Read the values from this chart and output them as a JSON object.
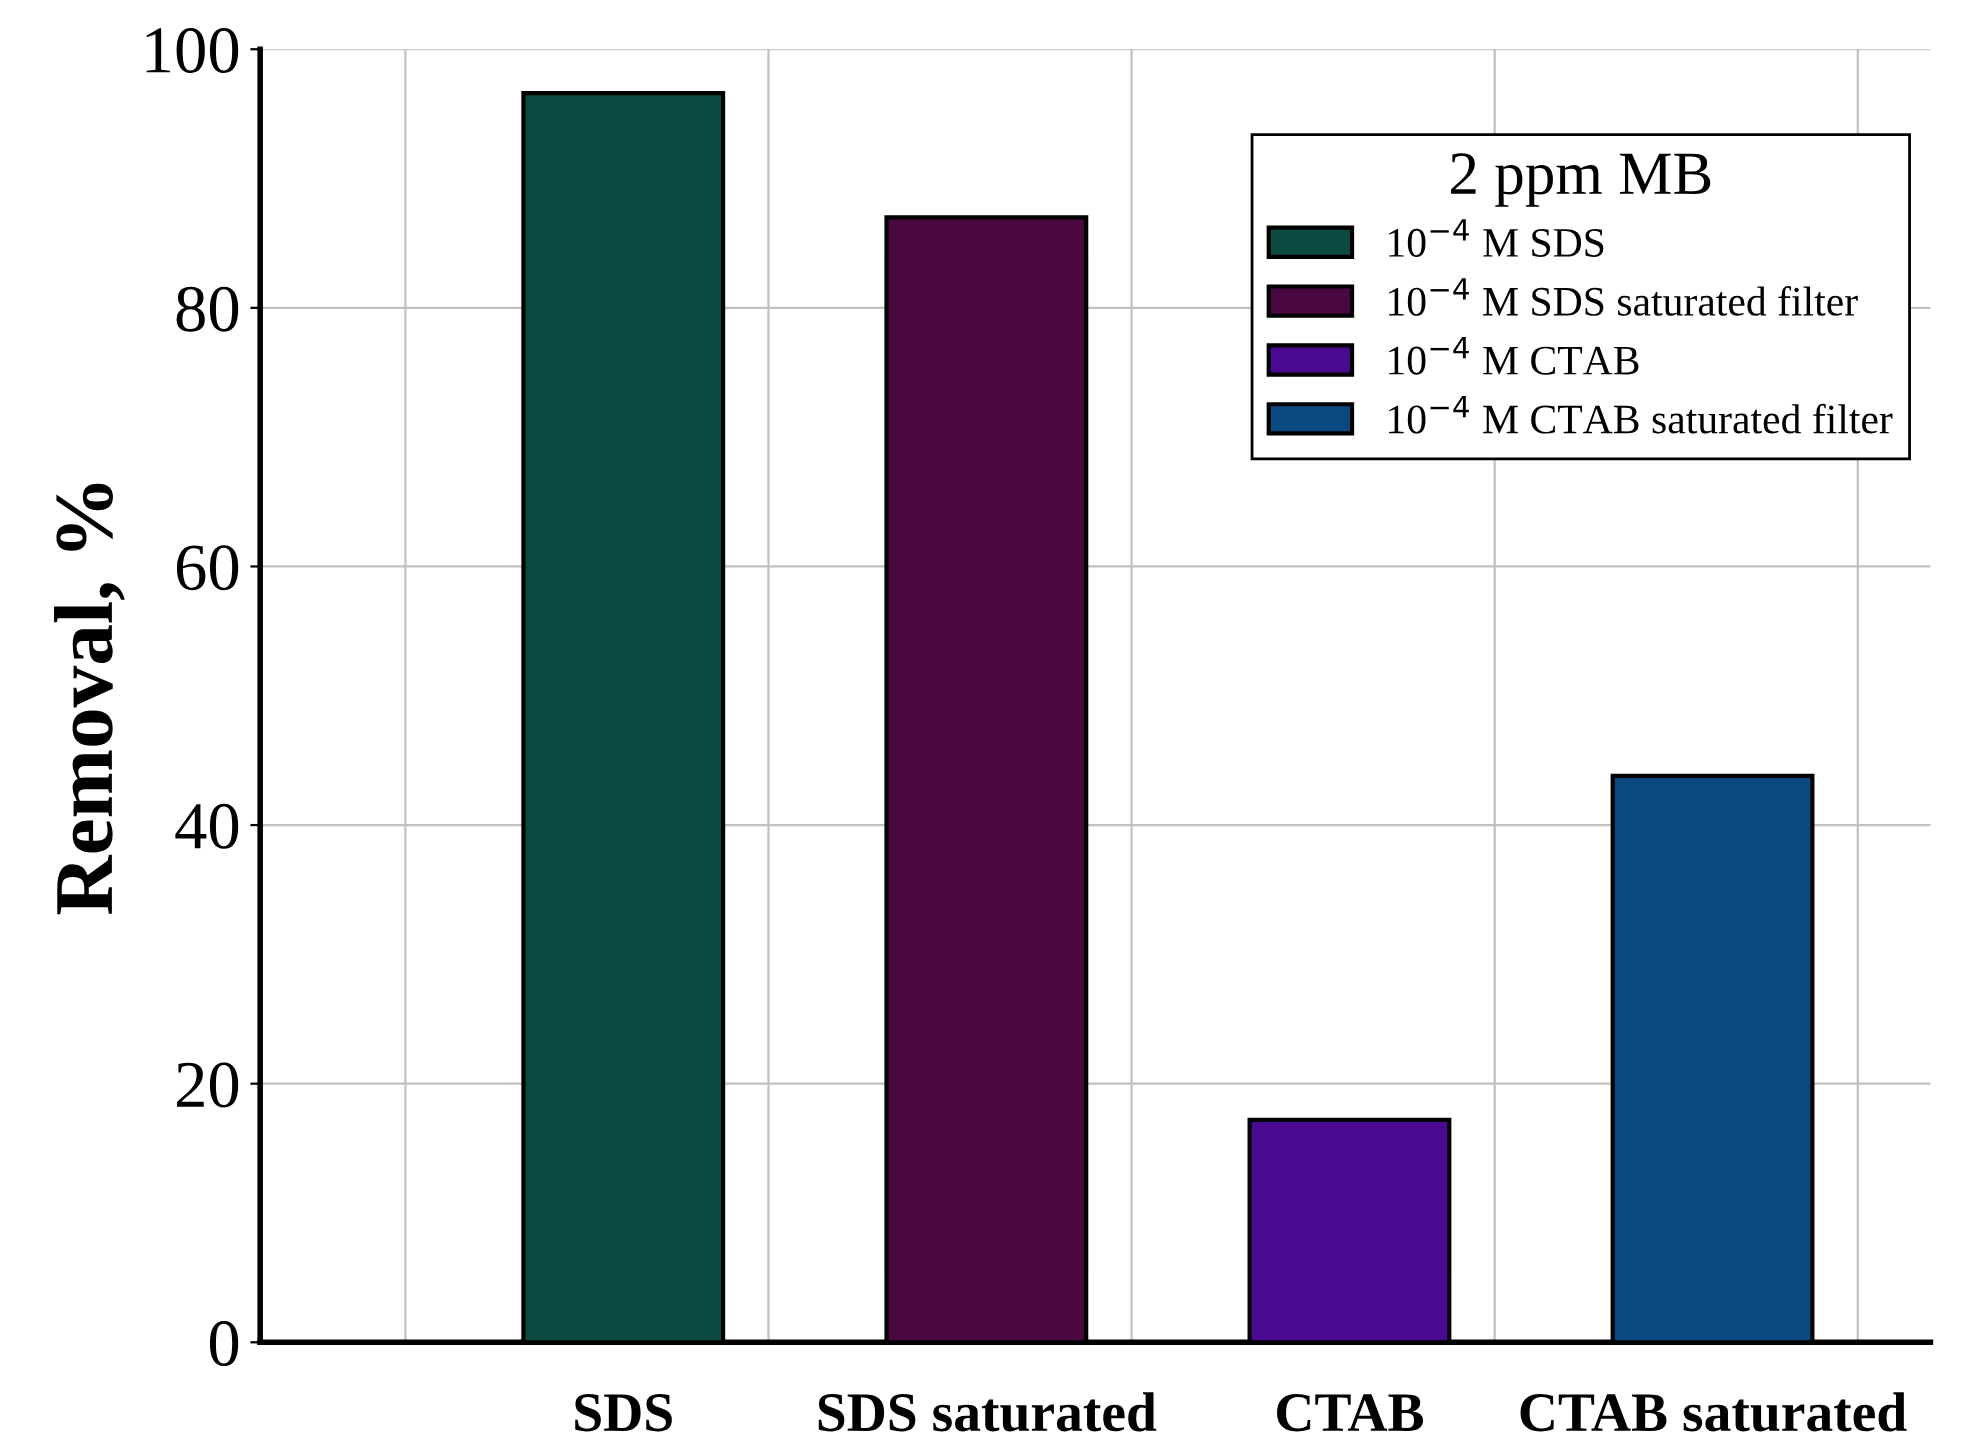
{
  "chart_data": {
    "type": "bar",
    "ylabel": "Removal, %",
    "legend_title": "2 ppm MB",
    "categories": [
      "SDS",
      "SDS saturated",
      "CTAB",
      "CTAB saturated"
    ],
    "series": [
      {
        "name": "10$^{−4}$ M SDS",
        "color": "#0a4a40",
        "values": [
          96.6,
          null,
          null,
          null
        ]
      },
      {
        "name": "10$^{−4}$ M SDS saturated filter",
        "color": "#4a0840",
        "values": [
          null,
          87.0,
          null,
          null
        ]
      },
      {
        "name": "10$^{−4}$ M CTAB",
        "color": "#4a0a90",
        "values": [
          null,
          null,
          17.2,
          null
        ]
      },
      {
        "name": "10$^{−4}$ M CTAB saturated filter",
        "color": "#0a4a80",
        "values": [
          null,
          null,
          null,
          43.8
        ]
      }
    ],
    "ylim": [
      0,
      100
    ],
    "yticks": [
      0,
      20,
      40,
      60,
      80,
      100
    ],
    "grid": true,
    "legend": "top right"
  }
}
